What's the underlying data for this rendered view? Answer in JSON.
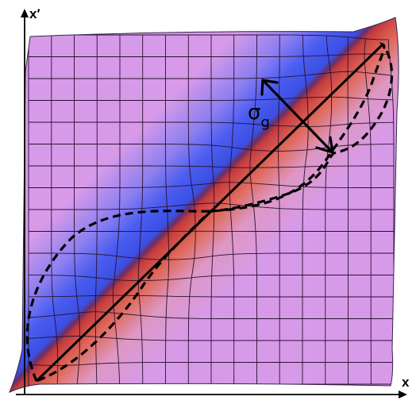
{
  "axes": {
    "x_label": "x",
    "y_label": "x′"
  },
  "annotation": {
    "symbol": "σ",
    "subscript": "g"
  },
  "colors": {
    "background": "#d79ae9",
    "blue_band": "#3a55e8",
    "red_band": "#d8504a",
    "grid": "#2a1030",
    "curve": "#000000"
  },
  "grid": {
    "cells_per_side": 16
  }
}
